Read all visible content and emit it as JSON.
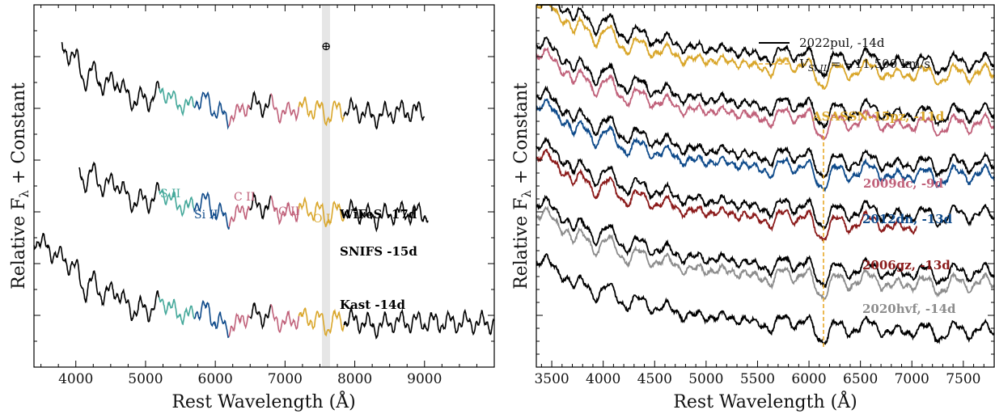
{
  "chart_data": [
    {
      "type": "line",
      "panel": "left",
      "xlabel": "Rest Wavelength (Å)",
      "ylabel": "Relative Fλ + Constant",
      "xlim": [
        3400,
        10000
      ],
      "ylim": [
        0,
        1
      ],
      "x_ticks": [
        4000,
        5000,
        6000,
        7000,
        8000,
        9000
      ],
      "telluric_band": [
        7560,
        7650
      ],
      "telluric_symbol": "⊕",
      "grid": false,
      "series": [
        {
          "name": "WiFeS -17d",
          "color": "#000000",
          "x_start": 3800,
          "x_end": 9000,
          "offset": 0.7
        },
        {
          "name": "SNIFS -15d",
          "color": "#000000",
          "x_start": 4050,
          "x_end": 9050,
          "offset": 0.42
        },
        {
          "name": "Kast -14d",
          "color": "#000000",
          "x_start": 3400,
          "x_end": 10000,
          "offset": 0.12
        }
      ],
      "ion_regions": [
        {
          "ion": "S II",
          "color": "#44a89a",
          "range": [
            5200,
            5700
          ]
        },
        {
          "ion": "Si II",
          "color": "#0e4a8a",
          "range": [
            5700,
            6200
          ]
        },
        {
          "ion": "C II",
          "color": "#c0617a",
          "range": [
            6200,
            6500
          ]
        },
        {
          "ion": "C II",
          "color": "#c0617a",
          "range": [
            6800,
            7200
          ]
        },
        {
          "ion": "O I",
          "color": "#d9a62a",
          "range": [
            7200,
            7850
          ]
        }
      ]
    },
    {
      "type": "line",
      "panel": "right",
      "xlabel": "Rest Wavelength (Å)",
      "ylabel": "Relative Fλ + Constant",
      "xlim": [
        3350,
        7800
      ],
      "ylim": [
        0,
        1
      ],
      "x_ticks": [
        3500,
        4000,
        4500,
        5000,
        5500,
        6000,
        6500,
        7000,
        7500
      ],
      "vline_x": 6110,
      "grid": false,
      "legend": {
        "position": "top-right",
        "entries": [
          {
            "label": "2022pul, -14d",
            "style": "solid",
            "color": "#000000"
          },
          {
            "label": "V_Si II = −11,500 km/s",
            "label_main": "V",
            "label_sub": "Si II",
            "label_rest": " = −11,500 km/s",
            "style": "dashed",
            "color": "#e8a92a"
          }
        ]
      },
      "series": [
        {
          "name": "ASASSN-15pz, -11d",
          "color": "#d9a62a",
          "offset": 0.8
        },
        {
          "name": "2009dc, -9d",
          "color": "#c0617a",
          "offset": 0.66
        },
        {
          "name": "2012dn, -13d",
          "color": "#0e4a8a",
          "offset": 0.52
        },
        {
          "name": "2006gz, -13d",
          "color": "#8b1a1a",
          "offset": 0.38
        },
        {
          "name": "2020hvf, -14d",
          "color": "#8c8c8c",
          "offset": 0.22
        },
        {
          "name": "2022pul, -14d",
          "color": "#000000",
          "offset": null
        }
      ]
    }
  ],
  "left": {
    "ylabel_main": "Relative F",
    "ylabel_sub": "λ",
    "ylabel_rest": " + Constant",
    "xlabel": "Rest Wavelength (Å)",
    "labels": {
      "wifes": "WiFeS -17d",
      "snifs": "SNIFS -15d",
      "kast": "Kast -14d",
      "s2": "S II",
      "si2": "Si II",
      "c2a": "C II",
      "c2b": "C II",
      "o1": "O I",
      "earth": "⊕"
    }
  },
  "right": {
    "ylabel_main": "Relative F",
    "ylabel_sub": "λ",
    "ylabel_rest": " + Constant",
    "xlabel": "Rest Wavelength (Å)",
    "labels": {
      "asassn": "ASASSN-15pz, -11d",
      "sn2009dc": "2009dc, -9d",
      "sn2012dn": "2012dn, -13d",
      "sn2006gz": "2006gz, -13d",
      "sn2020hvf": "2020hvf, -14d"
    }
  }
}
